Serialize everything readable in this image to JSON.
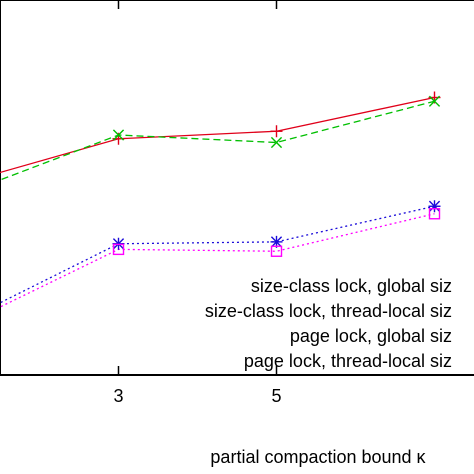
{
  "chart_data": {
    "type": "line",
    "title": "",
    "xlabel": "partial compaction bound κ",
    "ylabel": "",
    "x_ticks": [
      "3",
      "5"
    ],
    "x": [
      1,
      3,
      5,
      7
    ],
    "xlim": [
      1.5,
      7.5
    ],
    "ylim": [
      0,
      100
    ],
    "grid": false,
    "legend_position": "lower-right",
    "series": [
      {
        "name": "size-class lock, global siz",
        "color": "#e0001a",
        "dash": "solid",
        "marker": "plus",
        "values": [
          51,
          63,
          65,
          74
        ]
      },
      {
        "name": "size-class lock, thread-local siz",
        "color": "#00bf00",
        "dash": "dashed",
        "marker": "cross",
        "values": [
          48,
          64,
          62,
          73
        ]
      },
      {
        "name": "page lock, global siz",
        "color": "#1a0bd9",
        "dash": "dotted",
        "marker": "asterisk",
        "values": [
          14,
          35,
          35.5,
          45
        ]
      },
      {
        "name": "page lock, thread-local siz",
        "color": "#ff00ff",
        "dash": "dotted",
        "marker": "square",
        "values": [
          13,
          33.5,
          33,
          43
        ]
      }
    ]
  }
}
